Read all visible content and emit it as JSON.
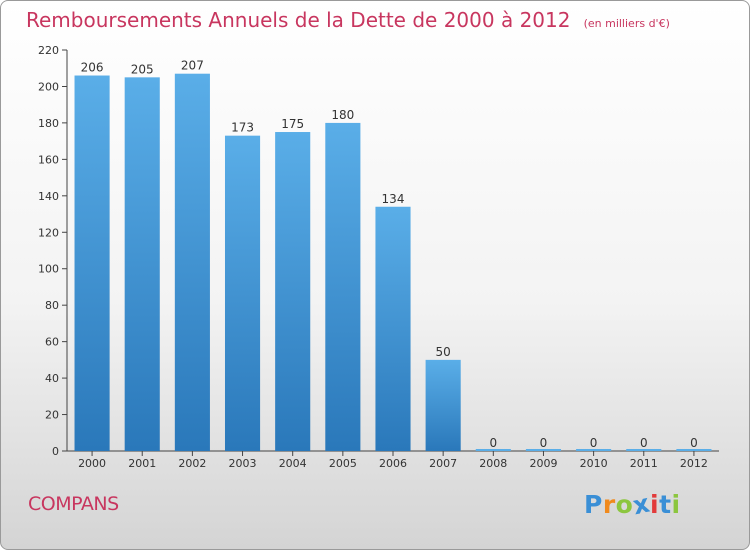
{
  "chart_data": {
    "type": "bar",
    "title": "Remboursements Annuels de la Dette de 2000 à 2012",
    "subtitle": "(en milliers d'€)",
    "categories": [
      "2000",
      "2001",
      "2002",
      "2003",
      "2004",
      "2005",
      "2006",
      "2007",
      "2008",
      "2009",
      "2010",
      "2011",
      "2012"
    ],
    "values": [
      206,
      205,
      207,
      173,
      175,
      180,
      134,
      50,
      0,
      0,
      0,
      0,
      0
    ],
    "ylim": [
      0,
      220
    ],
    "yticks": [
      0,
      20,
      40,
      60,
      80,
      100,
      120,
      140,
      160,
      180,
      200,
      220
    ],
    "grid": false,
    "legend": "none",
    "colors": {
      "bar_top": "#5aaee8",
      "bar_bottom": "#2a78ba",
      "text": "#333333"
    }
  },
  "place": "COMPANS",
  "logo": {
    "letters": [
      "P",
      "r",
      "o",
      "x",
      "i",
      "t",
      "i"
    ],
    "colors": [
      "#3a8fd6",
      "#f08a1d",
      "#8cc63f",
      "#3a8fd6",
      "#e23b3b",
      "#3a8fd6",
      "#8cc63f"
    ]
  }
}
